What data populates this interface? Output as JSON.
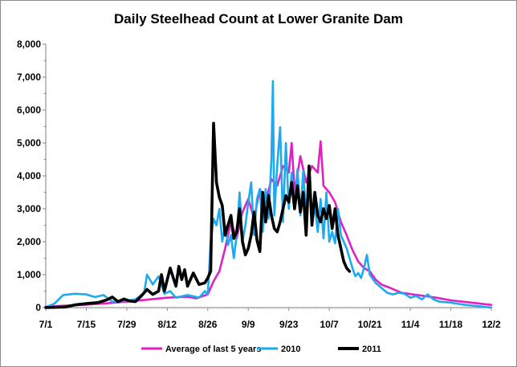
{
  "chart_data": {
    "type": "line",
    "title": "Daily Steelhead Count at Lower Granite Dam",
    "xlabel": "",
    "ylabel": "",
    "x_ticks": [
      "7/1",
      "7/15",
      "7/29",
      "8/12",
      "8/26",
      "9/9",
      "9/23",
      "10/7",
      "10/21",
      "11/4",
      "11/18",
      "12/2"
    ],
    "x_range_days": [
      0,
      154
    ],
    "ylim": [
      0,
      8000
    ],
    "y_ticks": [
      "0",
      "1,000",
      "2,000",
      "3,000",
      "4,000",
      "5,000",
      "6,000",
      "7,000",
      "8,000"
    ],
    "grid": "none",
    "legend_position": "bottom",
    "series": [
      {
        "name": "Average of last 5 years",
        "color": "#e020c0",
        "points": [
          [
            0,
            30
          ],
          [
            7,
            60
          ],
          [
            14,
            90
          ],
          [
            21,
            130
          ],
          [
            28,
            180
          ],
          [
            35,
            240
          ],
          [
            42,
            300
          ],
          [
            49,
            330
          ],
          [
            52,
            280
          ],
          [
            56,
            400
          ],
          [
            58,
            800
          ],
          [
            60,
            1100
          ],
          [
            62,
            1800
          ],
          [
            64,
            2600
          ],
          [
            66,
            2100
          ],
          [
            68,
            2900
          ],
          [
            70,
            3300
          ],
          [
            72,
            2700
          ],
          [
            74,
            3600
          ],
          [
            76,
            3200
          ],
          [
            78,
            3900
          ],
          [
            80,
            3700
          ],
          [
            82,
            4300
          ],
          [
            84,
            4100
          ],
          [
            85,
            5000
          ],
          [
            86,
            3500
          ],
          [
            88,
            4600
          ],
          [
            90,
            3800
          ],
          [
            92,
            4300
          ],
          [
            94,
            4100
          ],
          [
            95,
            5050
          ],
          [
            96,
            3700
          ],
          [
            98,
            3500
          ],
          [
            100,
            3200
          ],
          [
            102,
            2600
          ],
          [
            104,
            2200
          ],
          [
            106,
            1750
          ],
          [
            108,
            1400
          ],
          [
            110,
            1200
          ],
          [
            112,
            1100
          ],
          [
            114,
            850
          ],
          [
            116,
            700
          ],
          [
            119,
            600
          ],
          [
            123,
            450
          ],
          [
            127,
            400
          ],
          [
            131,
            350
          ],
          [
            135,
            300
          ],
          [
            140,
            220
          ],
          [
            147,
            150
          ],
          [
            154,
            80
          ]
        ]
      },
      {
        "name": "2010",
        "color": "#1eaaf0",
        "points": [
          [
            0,
            10
          ],
          [
            3,
            120
          ],
          [
            6,
            380
          ],
          [
            10,
            420
          ],
          [
            14,
            400
          ],
          [
            17,
            320
          ],
          [
            20,
            380
          ],
          [
            23,
            180
          ],
          [
            27,
            200
          ],
          [
            31,
            250
          ],
          [
            34,
            450
          ],
          [
            35,
            1000
          ],
          [
            37,
            700
          ],
          [
            39,
            950
          ],
          [
            41,
            420
          ],
          [
            43,
            500
          ],
          [
            45,
            300
          ],
          [
            49,
            380
          ],
          [
            53,
            300
          ],
          [
            55,
            500
          ],
          [
            56,
            400
          ],
          [
            57,
            2000
          ],
          [
            58,
            2700
          ],
          [
            59,
            2500
          ],
          [
            60,
            3000
          ],
          [
            61,
            2000
          ],
          [
            62,
            2500
          ],
          [
            63,
            1900
          ],
          [
            64,
            2200
          ],
          [
            65,
            1500
          ],
          [
            66,
            2200
          ],
          [
            67,
            3500
          ],
          [
            68,
            2000
          ],
          [
            69,
            2500
          ],
          [
            70,
            3200
          ],
          [
            71,
            3800
          ],
          [
            72,
            2200
          ],
          [
            73,
            3300
          ],
          [
            74,
            3600
          ],
          [
            75,
            2300
          ],
          [
            76,
            3600
          ],
          [
            77,
            2700
          ],
          [
            78,
            4500
          ],
          [
            78.5,
            6880
          ],
          [
            79,
            2800
          ],
          [
            80,
            4300
          ],
          [
            81,
            5480
          ],
          [
            82,
            2600
          ],
          [
            83,
            5000
          ],
          [
            84,
            3000
          ],
          [
            85,
            4100
          ],
          [
            86,
            3000
          ],
          [
            87,
            4200
          ],
          [
            88,
            2800
          ],
          [
            89,
            4150
          ],
          [
            90,
            2700
          ],
          [
            91,
            4200
          ],
          [
            92,
            2500
          ],
          [
            93,
            3100
          ],
          [
            94,
            2300
          ],
          [
            95,
            3300
          ],
          [
            96,
            2100
          ],
          [
            97,
            3500
          ],
          [
            98,
            2000
          ],
          [
            99,
            2300
          ],
          [
            100,
            1950
          ],
          [
            101,
            3000
          ],
          [
            102,
            2200
          ],
          [
            104,
            1800
          ],
          [
            105,
            1500
          ],
          [
            106,
            1200
          ],
          [
            107,
            950
          ],
          [
            108,
            1050
          ],
          [
            109,
            900
          ],
          [
            110,
            1200
          ],
          [
            111,
            1600
          ],
          [
            112,
            1000
          ],
          [
            114,
            750
          ],
          [
            116,
            600
          ],
          [
            118,
            450
          ],
          [
            120,
            400
          ],
          [
            122,
            450
          ],
          [
            124,
            420
          ],
          [
            126,
            300
          ],
          [
            128,
            350
          ],
          [
            130,
            250
          ],
          [
            132,
            400
          ],
          [
            134,
            250
          ],
          [
            136,
            180
          ],
          [
            140,
            150
          ],
          [
            145,
            80
          ],
          [
            150,
            40
          ],
          [
            154,
            0
          ]
        ]
      },
      {
        "name": "2011",
        "color": "#000000",
        "points": [
          [
            0,
            0
          ],
          [
            7,
            20
          ],
          [
            10,
            80
          ],
          [
            14,
            120
          ],
          [
            18,
            150
          ],
          [
            21,
            230
          ],
          [
            23,
            320
          ],
          [
            25,
            180
          ],
          [
            27,
            260
          ],
          [
            29,
            200
          ],
          [
            31,
            180
          ],
          [
            33,
            350
          ],
          [
            35,
            550
          ],
          [
            37,
            400
          ],
          [
            39,
            500
          ],
          [
            40,
            1000
          ],
          [
            41,
            500
          ],
          [
            43,
            1200
          ],
          [
            45,
            650
          ],
          [
            46,
            1250
          ],
          [
            47,
            850
          ],
          [
            48,
            1150
          ],
          [
            49,
            650
          ],
          [
            51,
            1050
          ],
          [
            53,
            700
          ],
          [
            55,
            750
          ],
          [
            56,
            900
          ],
          [
            57,
            1100
          ],
          [
            58,
            5600
          ],
          [
            59,
            3800
          ],
          [
            60,
            3350
          ],
          [
            61,
            3100
          ],
          [
            62,
            2200
          ],
          [
            63,
            2500
          ],
          [
            64,
            2800
          ],
          [
            65,
            2100
          ],
          [
            66,
            2300
          ],
          [
            67,
            3000
          ],
          [
            68,
            2000
          ],
          [
            69,
            1600
          ],
          [
            70,
            1800
          ],
          [
            71,
            2200
          ],
          [
            72,
            2900
          ],
          [
            73,
            2050
          ],
          [
            74,
            1700
          ],
          [
            75,
            3500
          ],
          [
            76,
            2600
          ],
          [
            77,
            3400
          ],
          [
            78,
            2800
          ],
          [
            79,
            2400
          ],
          [
            80,
            2300
          ],
          [
            81,
            2600
          ],
          [
            82,
            3000
          ],
          [
            83,
            3400
          ],
          [
            84,
            3200
          ],
          [
            85,
            3800
          ],
          [
            86,
            3000
          ],
          [
            87,
            3700
          ],
          [
            88,
            2900
          ],
          [
            89,
            3500
          ],
          [
            90,
            2200
          ],
          [
            91,
            4300
          ],
          [
            92,
            2500
          ],
          [
            93,
            3500
          ],
          [
            94,
            2800
          ],
          [
            95,
            2600
          ],
          [
            96,
            3000
          ],
          [
            97,
            2700
          ],
          [
            98,
            3100
          ],
          [
            99,
            2400
          ],
          [
            100,
            3000
          ],
          [
            101,
            2200
          ],
          [
            102,
            1800
          ],
          [
            103,
            1400
          ],
          [
            104,
            1200
          ],
          [
            105,
            1100
          ]
        ]
      }
    ]
  }
}
